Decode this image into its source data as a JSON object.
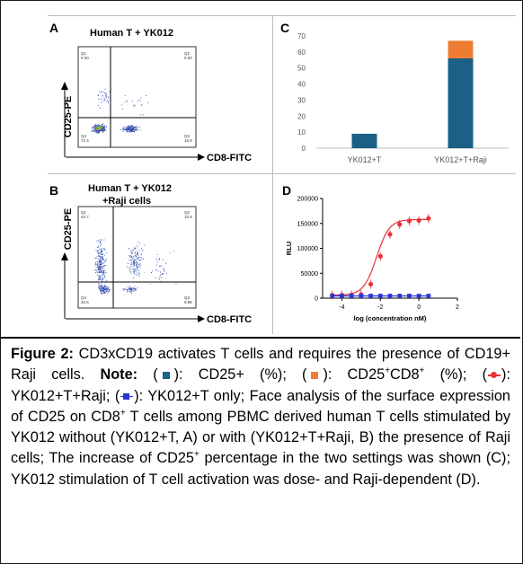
{
  "panels": {
    "A": {
      "letter": "A",
      "title": "Human T +  YK012",
      "ylabel": "CD25-PE",
      "xlabel": "CD8-FITC",
      "quadrants": {
        "Q1_label": "Q1",
        "Q1_value": "0.30",
        "Q2_label": "Q2",
        "Q2_value": "0.30",
        "Q3_label": "Q3",
        "Q3_value": "15.9",
        "Q4_label": "Q4",
        "Q4_value": "72.4"
      }
    },
    "B": {
      "letter": "B",
      "title_line1": "Human T +  YK012",
      "title_line2": "+Raji cells",
      "ylabel": "CD25-PE",
      "xlabel": "CD8-FITC",
      "quadrants": {
        "Q1_label": "Q1",
        "Q1_value": "44.7",
        "Q2_label": "Q2",
        "Q2_value": "10.9",
        "Q3_label": "Q3",
        "Q3_value": "9.88",
        "Q4_label": "Q4",
        "Q4_value": "34.6"
      }
    },
    "C": {
      "letter": "C"
    },
    "D": {
      "letter": "D"
    }
  },
  "chart_data": [
    {
      "panel": "C",
      "type": "bar",
      "stacked": true,
      "categories": [
        "YK012+T",
        "YK012+T+Raji"
      ],
      "series": [
        {
          "color": "#1a6087",
          "values": [
            9,
            56
          ]
        },
        {
          "color": "#ee7d33",
          "values": [
            0,
            11
          ]
        }
      ],
      "ylim": [
        0,
        70
      ],
      "yticks": [
        "0",
        "10",
        "20",
        "30",
        "40",
        "50",
        "60",
        "70"
      ],
      "grid": false
    },
    {
      "panel": "D",
      "type": "line",
      "xlabel": "log (concentration nM)",
      "ylabel": "RLU",
      "xlim": [
        -5,
        2
      ],
      "ylim": [
        0,
        200000
      ],
      "xticks": [
        -4,
        -2,
        0,
        2
      ],
      "xtick_labels": [
        "-4",
        "-2",
        "0",
        "2"
      ],
      "yticks": [
        0,
        50000,
        100000,
        150000,
        200000
      ],
      "ytick_labels": [
        "0",
        "50000",
        "100000",
        "150000",
        "200000"
      ],
      "series": [
        {
          "color": "#e8323a",
          "marker": "circle",
          "x": [
            -4.5,
            -4.0,
            -3.5,
            -3.0,
            -2.5,
            -2.0,
            -1.5,
            -1.0,
            -0.5,
            0.0,
            0.5
          ],
          "y": [
            6000,
            6000,
            6500,
            7500,
            28000,
            84000,
            128000,
            148000,
            155000,
            156000,
            160000
          ],
          "fit": {
            "bottom": 6000,
            "top": 158000,
            "logEC50": -2.2,
            "hill": 1.3
          }
        },
        {
          "color": "#2b36d6",
          "marker": "square",
          "x": [
            -4.5,
            -4.0,
            -3.5,
            -3.0,
            -2.5,
            -2.0,
            -1.5,
            -1.0,
            -0.5,
            0.0,
            0.5
          ],
          "y": [
            4500,
            4500,
            4500,
            4500,
            4500,
            4500,
            4500,
            4500,
            4500,
            4500,
            4500
          ]
        }
      ]
    }
  ],
  "caption": {
    "figure_label": "Figure 2:",
    "t1": " CD3xCD19 activates T cells and requires the presence of CD19+ Raji cells. ",
    "note_label": "Note:",
    "t2": " (",
    "t3": "): CD25+ (%); (",
    "t4": "): CD25",
    "t5": "CD8",
    "t6": " (%); (",
    "t7": "): YK012+T+Raji; (",
    "t8": "): YK012+T only; Face analysis of the surface expression of CD25 on CD8",
    "t9": " T cells among PBMC derived human T cells stimulated by YK012 without (YK012+T, A) or with (YK012+T+Raji, B) the presence of Raji cells; The increase of CD25",
    "t10": " percentage in the two settings was shown (C); YK012 stimulation of T cell activation was dose- and Raji-dependent (D).",
    "plus": "+"
  },
  "colors": {
    "bar_blue": "#1a6087",
    "bar_orange": "#ee7d33",
    "red": "#e8323a",
    "blue": "#2b36d6"
  }
}
